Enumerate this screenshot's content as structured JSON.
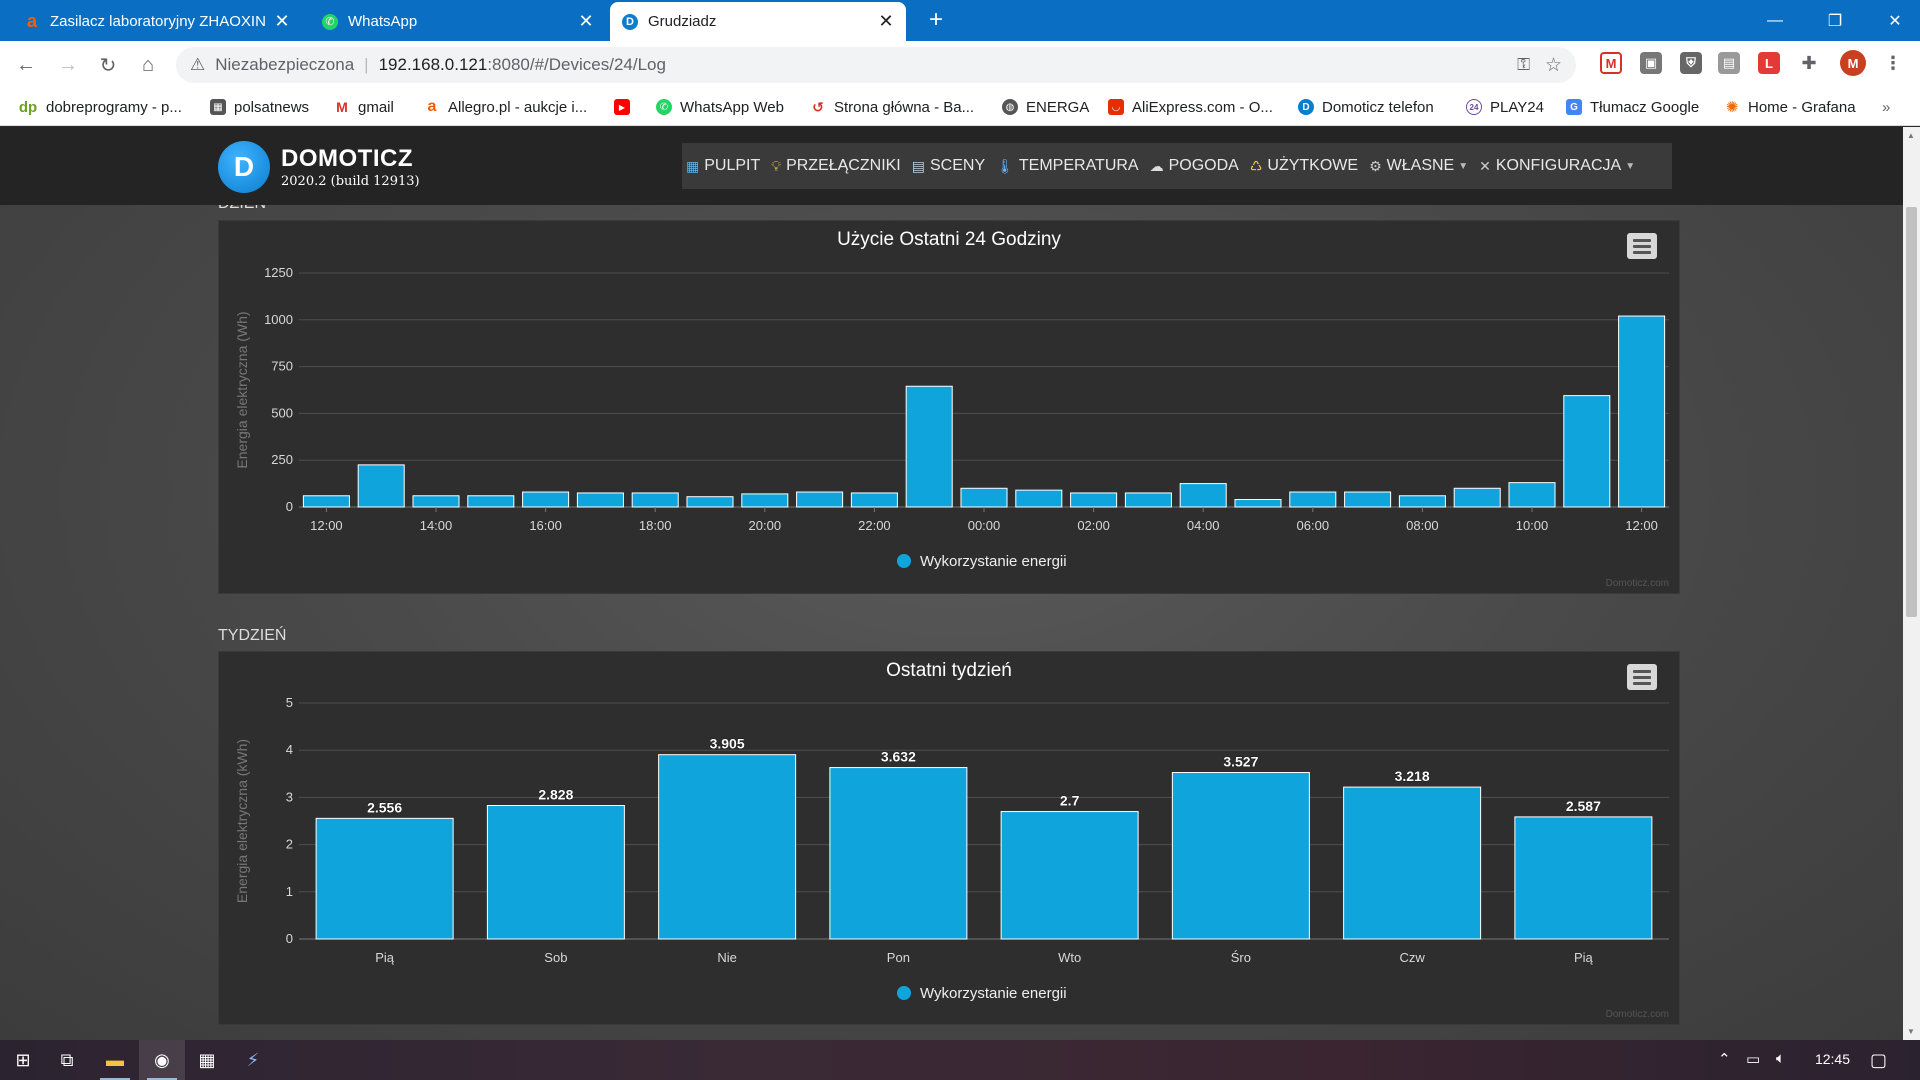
{
  "browser": {
    "tabs": [
      {
        "title": "Zasilacz laboratoryjny ZHAOXIN",
        "favicon": "allegro-icon",
        "active": false
      },
      {
        "title": "WhatsApp",
        "favicon": "whatsapp-icon",
        "active": false
      },
      {
        "title": "Grudziadz",
        "favicon": "domoticz-icon",
        "active": true
      }
    ],
    "new_tab_label": "+",
    "security_label": "Niezabezpieczona",
    "url_host": "192.168.0.121",
    "url_rest": ":8080/#/Devices/24/Log",
    "profile_initial": "M",
    "bookmarks": [
      {
        "label": "dobreprogramy - p...",
        "icon": "dp-icon"
      },
      {
        "label": "polsatnews",
        "icon": "news-icon"
      },
      {
        "label": "gmail",
        "icon": "gmail-icon"
      },
      {
        "label": "Allegro.pl - aukcje i...",
        "icon": "allegro-icon"
      },
      {
        "label": "",
        "icon": "youtube-icon"
      },
      {
        "label": "WhatsApp Web",
        "icon": "whatsapp-icon"
      },
      {
        "label": "Strona główna - Ba...",
        "icon": "bank-icon"
      },
      {
        "label": "ENERGA",
        "icon": "globe-icon"
      },
      {
        "label": "AliExpress.com - O...",
        "icon": "aliexpress-icon"
      },
      {
        "label": "Domoticz telefon",
        "icon": "domoticz-icon"
      },
      {
        "label": "PLAY24",
        "icon": "play24-icon"
      },
      {
        "label": "Tłumacz Google",
        "icon": "translate-icon"
      },
      {
        "label": "Home - Grafana",
        "icon": "grafana-icon"
      }
    ],
    "more_bookmarks": "»"
  },
  "app": {
    "title": "DOMOTICZ",
    "version": "2020.2 (build 12913)",
    "nav": [
      {
        "label": "PULPIT",
        "icon": "dashboard-icon"
      },
      {
        "label": "PRZEŁĄCZNIKI",
        "icon": "lightbulb-icon"
      },
      {
        "label": "SCENY",
        "icon": "scenes-icon"
      },
      {
        "label": "TEMPERATURA",
        "icon": "thermometer-icon"
      },
      {
        "label": "POGODA",
        "icon": "weather-icon"
      },
      {
        "label": "UŻYTKOWE",
        "icon": "utility-icon"
      },
      {
        "label": "WŁASNE",
        "icon": "gear-icon",
        "caret": true
      },
      {
        "label": "KONFIGURACJA",
        "icon": "wrench-icon",
        "caret": true
      }
    ]
  },
  "sections": {
    "day_label": "DZIEŃ",
    "week_label": "TYDZIEŃ"
  },
  "chart_data": [
    {
      "type": "bar",
      "title": "Użycie Ostatni 24 Godziny",
      "ylabel": "Energia elektryczna (Wh)",
      "ylim": [
        0,
        1250
      ],
      "yticks": [
        0,
        250,
        500,
        750,
        1000,
        1250
      ],
      "x_tick_labels": [
        "12:00",
        "14:00",
        "16:00",
        "18:00",
        "20:00",
        "22:00",
        "00:00",
        "02:00",
        "04:00",
        "06:00",
        "08:00",
        "10:00",
        "12:00"
      ],
      "categories": [
        "12:00",
        "13:00",
        "14:00",
        "15:00",
        "16:00",
        "17:00",
        "18:00",
        "19:00",
        "20:00",
        "21:00",
        "22:00",
        "23:00",
        "00:00",
        "01:00",
        "02:00",
        "03:00",
        "04:00",
        "05:00",
        "06:00",
        "07:00",
        "08:00",
        "09:00",
        "10:00",
        "11:00",
        "12:00"
      ],
      "values": [
        60,
        225,
        60,
        60,
        80,
        75,
        75,
        55,
        70,
        80,
        75,
        645,
        100,
        90,
        75,
        75,
        125,
        40,
        80,
        80,
        60,
        100,
        130,
        595,
        1020
      ],
      "legend": "Wykorzystanie energii",
      "legend_position": "bottom-center",
      "color": "#0fa5dc",
      "grid": true,
      "credit": "Domoticz.com"
    },
    {
      "type": "bar",
      "title": "Ostatni tydzień",
      "ylabel": "Energia elektryczna (kWh)",
      "ylim": [
        0,
        5
      ],
      "yticks": [
        0,
        1,
        2,
        3,
        4,
        5
      ],
      "categories": [
        "Pią",
        "Sob",
        "Nie",
        "Pon",
        "Wto",
        "Śro",
        "Czw",
        "Pią"
      ],
      "values": [
        2.556,
        2.828,
        3.905,
        3.632,
        2.7,
        3.527,
        3.218,
        2.587
      ],
      "data_labels": [
        "2.556",
        "2.828",
        "3.905",
        "3.632",
        "2.7",
        "3.527",
        "3.218",
        "2.587"
      ],
      "legend": "Wykorzystanie energii",
      "legend_position": "bottom-center",
      "color": "#0fa5dc",
      "grid": true,
      "credit": "Domoticz.com"
    }
  ],
  "taskbar": {
    "clock": "12:45"
  }
}
